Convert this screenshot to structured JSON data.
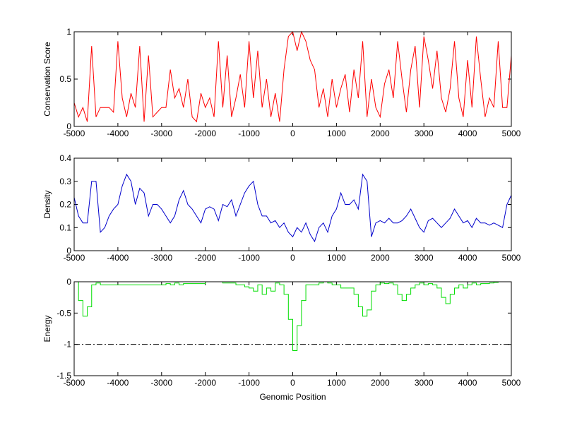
{
  "chart_data": [
    {
      "type": "line",
      "ylabel": "Conservation Score",
      "color": "#ff0000",
      "drawstyle": "default",
      "xlim": [
        -5000,
        5000
      ],
      "xticks": [
        -5000,
        -4000,
        -3000,
        -2000,
        -1000,
        0,
        1000,
        2000,
        3000,
        4000,
        5000
      ],
      "ylim": [
        0,
        1
      ],
      "yticks": [
        0,
        0.5,
        1
      ],
      "x": [
        -5000,
        -4900,
        -4800,
        -4700,
        -4600,
        -4500,
        -4400,
        -4300,
        -4200,
        -4100,
        -4000,
        -3900,
        -3800,
        -3700,
        -3600,
        -3500,
        -3400,
        -3300,
        -3200,
        -3100,
        -3000,
        -2900,
        -2800,
        -2700,
        -2600,
        -2500,
        -2400,
        -2300,
        -2200,
        -2100,
        -2000,
        -1900,
        -1800,
        -1700,
        -1600,
        -1500,
        -1400,
        -1300,
        -1200,
        -1100,
        -1000,
        -900,
        -800,
        -700,
        -600,
        -500,
        -400,
        -300,
        -200,
        -100,
        0,
        100,
        200,
        300,
        400,
        500,
        600,
        700,
        800,
        900,
        1000,
        1100,
        1200,
        1300,
        1400,
        1500,
        1600,
        1700,
        1800,
        1900,
        2000,
        2100,
        2200,
        2300,
        2400,
        2500,
        2600,
        2700,
        2800,
        2900,
        3000,
        3100,
        3200,
        3300,
        3400,
        3500,
        3600,
        3700,
        3800,
        3900,
        4000,
        4100,
        4200,
        4300,
        4400,
        4500,
        4600,
        4700,
        4800,
        4900,
        5000
      ],
      "values": [
        0.25,
        0.1,
        0.2,
        0.05,
        0.85,
        0.1,
        0.2,
        0.2,
        0.2,
        0.15,
        0.9,
        0.3,
        0.1,
        0.35,
        0.2,
        0.85,
        0.05,
        0.75,
        0.1,
        0.15,
        0.2,
        0.2,
        0.6,
        0.3,
        0.4,
        0.2,
        0.5,
        0.1,
        0.05,
        0.35,
        0.2,
        0.3,
        0.1,
        0.9,
        0.2,
        0.75,
        0.1,
        0.3,
        0.55,
        0.2,
        0.9,
        0.3,
        0.8,
        0.2,
        0.5,
        0.1,
        0.35,
        0.05,
        0.6,
        0.95,
        1,
        0.8,
        1,
        0.9,
        0.7,
        0.6,
        0.2,
        0.4,
        0.1,
        0.5,
        0.2,
        0.4,
        0.55,
        0.15,
        0.6,
        0.3,
        0.9,
        0.1,
        0.5,
        0.2,
        0.1,
        0.45,
        0.6,
        0.3,
        0.9,
        0.5,
        0.15,
        0.6,
        0.85,
        0.2,
        0.95,
        0.7,
        0.4,
        0.8,
        0.3,
        0.15,
        0.4,
        0.9,
        0.3,
        0.1,
        0.7,
        0.2,
        0.95,
        0.5,
        0.1,
        0.3,
        0.2,
        0.9,
        0.2,
        0.2,
        0.75
      ]
    },
    {
      "type": "line",
      "ylabel": "Density",
      "color": "#0000cc",
      "drawstyle": "default",
      "xlim": [
        -5000,
        5000
      ],
      "xticks": [
        -5000,
        -4000,
        -3000,
        -2000,
        -1000,
        0,
        1000,
        2000,
        3000,
        4000,
        5000
      ],
      "ylim": [
        0,
        0.4
      ],
      "yticks": [
        0,
        0.1,
        0.2,
        0.3,
        0.4
      ],
      "x": [
        -5000,
        -4900,
        -4800,
        -4700,
        -4600,
        -4500,
        -4400,
        -4300,
        -4200,
        -4100,
        -4000,
        -3900,
        -3800,
        -3700,
        -3600,
        -3500,
        -3400,
        -3300,
        -3200,
        -3100,
        -3000,
        -2900,
        -2800,
        -2700,
        -2600,
        -2500,
        -2400,
        -2300,
        -2200,
        -2100,
        -2000,
        -1900,
        -1800,
        -1700,
        -1600,
        -1500,
        -1400,
        -1300,
        -1200,
        -1100,
        -1000,
        -900,
        -800,
        -700,
        -600,
        -500,
        -400,
        -300,
        -200,
        -100,
        0,
        100,
        200,
        300,
        400,
        500,
        600,
        700,
        800,
        900,
        1000,
        1100,
        1200,
        1300,
        1400,
        1500,
        1600,
        1700,
        1800,
        1900,
        2000,
        2100,
        2200,
        2300,
        2400,
        2500,
        2600,
        2700,
        2800,
        2900,
        3000,
        3100,
        3200,
        3300,
        3400,
        3500,
        3600,
        3700,
        3800,
        3900,
        4000,
        4100,
        4200,
        4300,
        4400,
        4500,
        4600,
        4700,
        4800,
        4900,
        5000
      ],
      "values": [
        0.23,
        0.15,
        0.12,
        0.12,
        0.3,
        0.3,
        0.08,
        0.1,
        0.15,
        0.18,
        0.2,
        0.28,
        0.33,
        0.3,
        0.2,
        0.27,
        0.25,
        0.15,
        0.2,
        0.2,
        0.18,
        0.15,
        0.12,
        0.15,
        0.22,
        0.26,
        0.2,
        0.18,
        0.15,
        0.12,
        0.18,
        0.19,
        0.18,
        0.13,
        0.2,
        0.19,
        0.22,
        0.15,
        0.2,
        0.25,
        0.28,
        0.3,
        0.2,
        0.15,
        0.15,
        0.12,
        0.13,
        0.1,
        0.12,
        0.08,
        0.06,
        0.1,
        0.08,
        0.12,
        0.07,
        0.04,
        0.1,
        0.12,
        0.08,
        0.15,
        0.18,
        0.25,
        0.2,
        0.2,
        0.22,
        0.18,
        0.33,
        0.3,
        0.06,
        0.12,
        0.13,
        0.12,
        0.14,
        0.12,
        0.12,
        0.13,
        0.15,
        0.18,
        0.14,
        0.1,
        0.08,
        0.13,
        0.14,
        0.12,
        0.1,
        0.12,
        0.14,
        0.18,
        0.15,
        0.12,
        0.13,
        0.1,
        0.14,
        0.12,
        0.12,
        0.11,
        0.12,
        0.11,
        0.1,
        0.2,
        0.24
      ]
    },
    {
      "type": "line",
      "ylabel": "Energy",
      "xlabel": "Genomic Position",
      "color": "#00dd00",
      "drawstyle": "steps",
      "xlim": [
        -5000,
        5000
      ],
      "xticks": [
        -5000,
        -4000,
        -3000,
        -2000,
        -1000,
        0,
        1000,
        2000,
        3000,
        4000,
        5000
      ],
      "ylim": [
        -1.5,
        0
      ],
      "yticks": [
        -1.5,
        -1,
        -0.5,
        0
      ],
      "hline": {
        "value": -1,
        "color": "#000000",
        "style": "dashdot"
      },
      "x": [
        -5000,
        -4900,
        -4800,
        -4700,
        -4600,
        -4500,
        -4400,
        -4300,
        -4200,
        -4100,
        -4000,
        -3900,
        -3800,
        -3700,
        -3600,
        -3500,
        -3400,
        -3300,
        -3200,
        -3100,
        -3000,
        -2900,
        -2800,
        -2700,
        -2600,
        -2500,
        -2400,
        -2300,
        -2200,
        -2100,
        -2000,
        -1900,
        -1800,
        -1700,
        -1600,
        -1500,
        -1400,
        -1300,
        -1200,
        -1100,
        -1000,
        -900,
        -800,
        -700,
        -600,
        -500,
        -400,
        -300,
        -200,
        -100,
        0,
        100,
        200,
        300,
        400,
        500,
        600,
        700,
        800,
        900,
        1000,
        1100,
        1200,
        1300,
        1400,
        1500,
        1600,
        1700,
        1800,
        1900,
        2000,
        2100,
        2200,
        2300,
        2400,
        2500,
        2600,
        2700,
        2800,
        2900,
        3000,
        3100,
        3200,
        3300,
        3400,
        3500,
        3600,
        3700,
        3800,
        3900,
        4000,
        4100,
        4200,
        4300,
        4400,
        4500,
        4600,
        4700,
        4800,
        4900,
        5000
      ],
      "values": [
        0,
        -0.3,
        -0.55,
        -0.4,
        -0.05,
        -0.02,
        -0.05,
        -0.05,
        -0.05,
        -0.05,
        -0.05,
        -0.05,
        -0.05,
        -0.05,
        -0.05,
        -0.05,
        -0.05,
        -0.05,
        -0.05,
        -0.05,
        -0.05,
        -0.03,
        -0.05,
        -0.02,
        -0.05,
        -0.03,
        -0.03,
        -0.03,
        -0.03,
        -0.03,
        0,
        0,
        0,
        0,
        -0.02,
        -0.02,
        -0.02,
        -0.05,
        -0.05,
        -0.08,
        -0.1,
        -0.15,
        -0.05,
        -0.2,
        -0.1,
        -0.15,
        -0.02,
        -0.05,
        -0.2,
        -0.6,
        -1.1,
        -0.7,
        -0.3,
        -0.05,
        -0.05,
        -0.05,
        -0.02,
        0,
        -0.02,
        -0.05,
        -0.05,
        -0.1,
        -0.1,
        -0.1,
        -0.2,
        -0.4,
        -0.55,
        -0.45,
        -0.15,
        -0.05,
        -0.02,
        -0.03,
        -0.02,
        -0.05,
        -0.2,
        -0.3,
        -0.2,
        -0.1,
        -0.05,
        -0.02,
        -0.05,
        -0.03,
        -0.05,
        -0.1,
        -0.25,
        -0.35,
        -0.2,
        -0.1,
        -0.05,
        -0.1,
        -0.05,
        -0.02,
        -0.05,
        -0.03,
        -0.03,
        -0.02,
        -0.01,
        0,
        0,
        0,
        0
      ]
    }
  ]
}
